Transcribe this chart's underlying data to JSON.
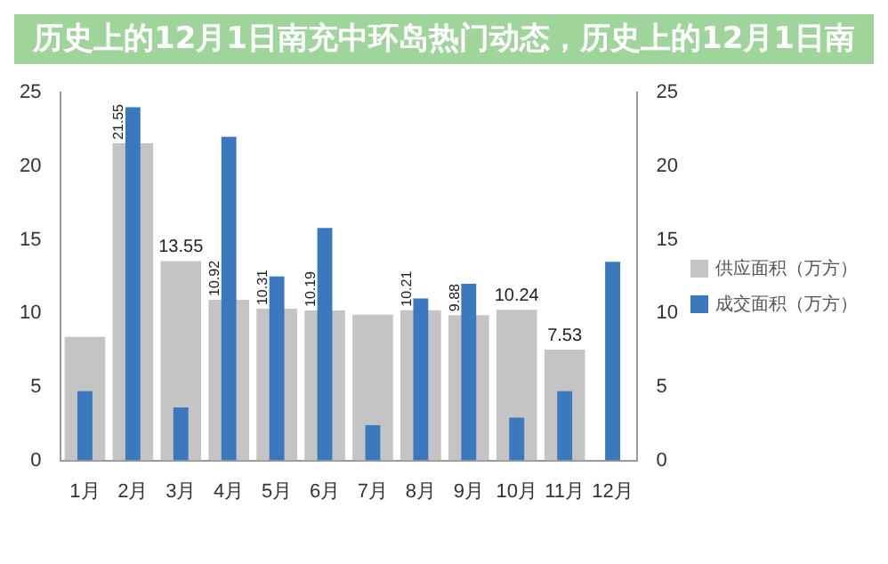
{
  "chart_data": {
    "type": "bar",
    "title": "历史上的12月1日南充中环岛热门动态，历史上的12月1日南",
    "categories": [
      "1月",
      "2月",
      "3月",
      "4月",
      "5月",
      "6月",
      "7月",
      "8月",
      "9月",
      "10月",
      "11月",
      "12月"
    ],
    "series": [
      {
        "name": "供应面积（万方）",
        "color": "#c4c4c4",
        "values": [
          8.4,
          21.55,
          13.55,
          10.92,
          10.31,
          10.19,
          9.9,
          10.21,
          9.88,
          10.24,
          7.53,
          null
        ],
        "value_labels": [
          null,
          "21.55",
          "13.55",
          "10.92",
          "10.31",
          "10.19",
          null,
          "10.21",
          "9.88",
          "10.24",
          "7.53",
          null
        ]
      },
      {
        "name": "成交面积（万方）",
        "color": "#3b78bd",
        "values": [
          4.7,
          24,
          3.6,
          22,
          12.5,
          15.8,
          2.4,
          11,
          12,
          2.9,
          4.7,
          13.5
        ]
      }
    ],
    "ylim": [
      0,
      25
    ],
    "yticks": [
      0,
      5,
      10,
      15,
      20,
      25
    ],
    "y2lim": [
      0,
      25
    ],
    "y2ticks": [
      0,
      5,
      10,
      15,
      20,
      25
    ],
    "grid": false,
    "legend": "right"
  }
}
